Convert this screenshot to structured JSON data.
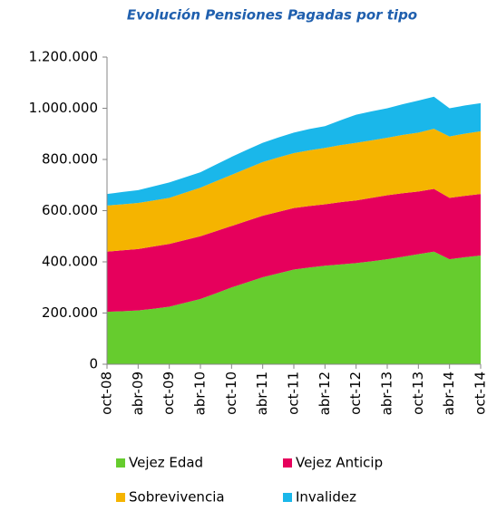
{
  "chart_data": {
    "type": "area",
    "stacked": true,
    "title": "Evolución Pensiones Pagadas por tipo",
    "categories": [
      "oct-08",
      null,
      "abr-09",
      null,
      "oct-09",
      null,
      "abr-10",
      null,
      "oct-10",
      null,
      "abr-11",
      null,
      "oct-11",
      null,
      "abr-12",
      null,
      "oct-12",
      null,
      "abr-13",
      null,
      "oct-13",
      null,
      "abr-14",
      null,
      "oct-14"
    ],
    "series": [
      {
        "name": "Vejez Edad",
        "color": "#66cc2e",
        "values": [
          205000,
          207000,
          210000,
          217000,
          225000,
          240000,
          255000,
          277000,
          300000,
          320000,
          340000,
          355000,
          370000,
          378000,
          385000,
          390000,
          395000,
          402000,
          410000,
          420000,
          430000,
          440000,
          410000,
          418000,
          425000
        ]
      },
      {
        "name": "Vejez Anticip",
        "color": "#e6005c",
        "values": [
          235000,
          238000,
          240000,
          243000,
          245000,
          245000,
          245000,
          243000,
          240000,
          240000,
          240000,
          240000,
          240000,
          240000,
          240000,
          243000,
          245000,
          248000,
          250000,
          248000,
          245000,
          245000,
          240000,
          240000,
          240000
        ]
      },
      {
        "name": "Sobrevivencia",
        "color": "#f5b400",
        "values": [
          180000,
          180000,
          180000,
          180000,
          180000,
          185000,
          190000,
          195000,
          200000,
          205000,
          210000,
          213000,
          215000,
          218000,
          220000,
          223000,
          225000,
          225000,
          225000,
          228000,
          230000,
          235000,
          240000,
          243000,
          245000
        ]
      },
      {
        "name": "Invalidez",
        "color": "#1ab7ea",
        "values": [
          45000,
          48000,
          50000,
          55000,
          60000,
          60000,
          60000,
          65000,
          70000,
          73000,
          75000,
          78000,
          80000,
          83000,
          85000,
          97000,
          110000,
          113000,
          115000,
          120000,
          125000,
          125000,
          110000,
          110000,
          110000
        ]
      }
    ],
    "ylim": [
      0,
      1200000
    ],
    "yticks": [
      0,
      {
        "value": 200000,
        "label": "200.000"
      },
      {
        "value": 400000,
        "label": "400.000"
      },
      {
        "value": 600000,
        "label": "600.000"
      },
      {
        "value": 800000,
        "label": "800.000"
      },
      {
        "value": 1000000,
        "label": "1.000.000"
      },
      {
        "value": 1200000,
        "label": "1.200.000"
      }
    ],
    "legend": "bottom"
  }
}
